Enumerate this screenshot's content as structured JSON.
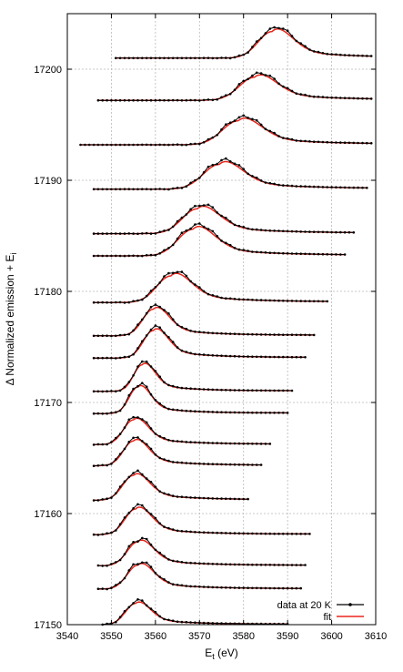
{
  "chart_data": {
    "type": "line",
    "title": "",
    "xlabel": "E",
    "xlabel_sub": "t",
    "xlabel_unit": " (eV)",
    "ylabel": "Δ Normalized emission + E",
    "ylabel_sub": "i",
    "xlim": [
      3540,
      3610
    ],
    "ylim": [
      17150,
      17205
    ],
    "xticks": [
      "3540",
      "3550",
      "3560",
      "3570",
      "3580",
      "3590",
      "3600",
      "3610"
    ],
    "yticks": [
      "17150",
      "17160",
      "17170",
      "17180",
      "17190",
      "17200"
    ],
    "grid": true,
    "legend_position": "bottom-right",
    "legend": {
      "data": "data at 20 K",
      "fit": "fit"
    },
    "colors": {
      "data": "#000000",
      "fit": "#e8261b",
      "grid": "#b8b8b8"
    },
    "spectra": [
      {
        "ei": 17150.0,
        "xmin": 3548,
        "xmax": 3590,
        "center": 3555.5,
        "amp": 2.4,
        "width": 3.0
      },
      {
        "ei": 17153.2,
        "xmin": 3547,
        "xmax": 3593,
        "center": 3556.0,
        "amp": 2.7,
        "width": 3.2
      },
      {
        "ei": 17155.3,
        "xmin": 3547,
        "xmax": 3594,
        "center": 3556.0,
        "amp": 2.7,
        "width": 3.2
      },
      {
        "ei": 17158.1,
        "xmin": 3546,
        "xmax": 3595,
        "center": 3555.5,
        "amp": 2.9,
        "width": 3.2
      },
      {
        "ei": 17161.2,
        "xmin": 3546,
        "xmax": 3581,
        "center": 3555.0,
        "amp": 2.8,
        "width": 3.2
      },
      {
        "ei": 17164.3,
        "xmin": 3546,
        "xmax": 3584,
        "center": 3555.0,
        "amp": 2.8,
        "width": 3.0
      },
      {
        "ei": 17166.2,
        "xmin": 3546,
        "xmax": 3586,
        "center": 3555.0,
        "amp": 2.8,
        "width": 3.0
      },
      {
        "ei": 17169.0,
        "xmin": 3546,
        "xmax": 3590,
        "center": 3556.0,
        "amp": 3.0,
        "width": 2.6
      },
      {
        "ei": 17171.0,
        "xmin": 3546,
        "xmax": 3591,
        "center": 3557.0,
        "amp": 3.0,
        "width": 2.6
      },
      {
        "ei": 17174.0,
        "xmin": 3546,
        "xmax": 3594,
        "center": 3559.5,
        "amp": 3.1,
        "width": 3.0
      },
      {
        "ei": 17176.0,
        "xmin": 3546,
        "xmax": 3596,
        "center": 3559.5,
        "amp": 3.0,
        "width": 3.2
      },
      {
        "ei": 17179.0,
        "xmin": 3546,
        "xmax": 3599,
        "center": 3563.5,
        "amp": 3.0,
        "width": 4.2
      },
      {
        "ei": 17183.2,
        "xmin": 3546,
        "xmax": 3603,
        "center": 3568.5,
        "amp": 3.0,
        "width": 4.5
      },
      {
        "ei": 17185.2,
        "xmin": 3546,
        "xmax": 3605,
        "center": 3569.5,
        "amp": 2.8,
        "width": 4.5
      },
      {
        "ei": 17189.2,
        "xmin": 3546,
        "xmax": 3608,
        "center": 3574.5,
        "amp": 2.8,
        "width": 4.8
      },
      {
        "ei": 17193.2,
        "xmin": 3543,
        "xmax": 3609,
        "center": 3578.8,
        "amp": 2.7,
        "width": 4.8
      },
      {
        "ei": 17197.2,
        "xmin": 3547,
        "xmax": 3609,
        "center": 3582.5,
        "amp": 2.6,
        "width": 4.6
      },
      {
        "ei": 17201.0,
        "xmin": 3551,
        "xmax": 3609,
        "center": 3586.5,
        "amp": 3.0,
        "width": 4.2
      }
    ]
  }
}
